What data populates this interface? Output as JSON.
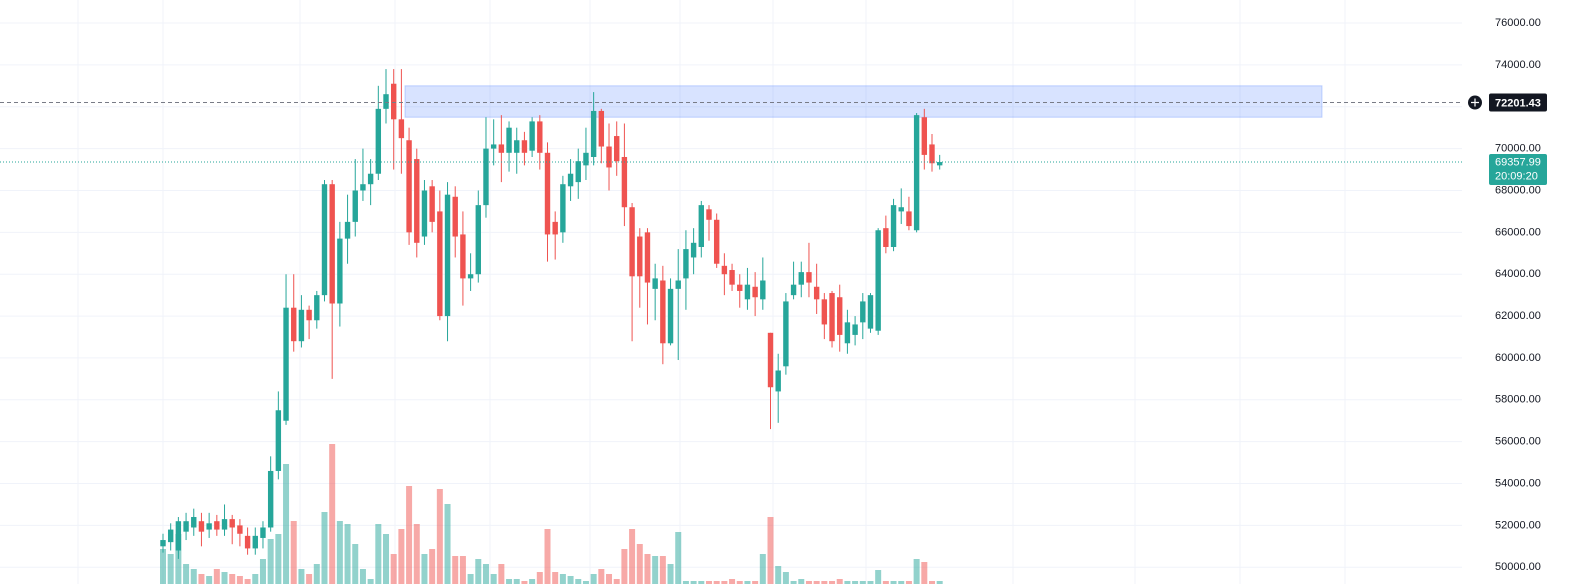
{
  "chart_data": {
    "type": "candlestick",
    "up_color": "#26a69a",
    "down_color": "#ef5350",
    "ylim": [
      49200,
      77100
    ],
    "yticks": [
      {
        "value": 50000,
        "label": "50000.00"
      },
      {
        "value": 52000,
        "label": "52000.00"
      },
      {
        "value": 54000,
        "label": "54000.00"
      },
      {
        "value": 56000,
        "label": "56000.00"
      },
      {
        "value": 58000,
        "label": "58000.00"
      },
      {
        "value": 60000,
        "label": "60000.00"
      },
      {
        "value": 62000,
        "label": "62000.00"
      },
      {
        "value": 64000,
        "label": "64000.00"
      },
      {
        "value": 66000,
        "label": "66000.00"
      },
      {
        "value": 68000,
        "label": "68000.00"
      },
      {
        "value": 70000,
        "label": "70000.00"
      },
      {
        "value": 72000,
        "label": "72000.00"
      },
      {
        "value": 74000,
        "label": "74000.00"
      },
      {
        "value": 76000,
        "label": "76000.00"
      }
    ],
    "grid": true,
    "zone": [
      71500,
      73000
    ],
    "alert_line": 72201.43,
    "last_price": 69357.99,
    "countdown": "20:09:20",
    "open": [
      51000,
      51200,
      50800,
      51700,
      51900,
      52200,
      51800,
      52200,
      51800,
      52300,
      52000,
      51500,
      50900,
      51400,
      51900,
      54600,
      57000,
      62400,
      60800,
      62300,
      61800,
      63000,
      68300,
      62600,
      65700,
      66500,
      68000,
      68300,
      68800,
      71900,
      73100,
      71400,
      70400,
      69500,
      65800,
      68200,
      67000,
      62000,
      67700,
      65900,
      63800,
      64000,
      67300,
      70000,
      70200,
      69800,
      69800,
      70400,
      69900,
      71300,
      69800,
      66500,
      66000,
      68200,
      68400,
      69200,
      69600,
      71800,
      70100,
      70600,
      69600,
      67200,
      65800,
      66000,
      63300,
      63700,
      60700,
      63300,
      63800,
      64800,
      65300,
      67100,
      66600,
      64400,
      64200,
      63500,
      62800,
      63400,
      62800,
      61200,
      58400,
      59600,
      63000,
      63500,
      64100,
      63400,
      62800,
      63100,
      62900,
      60700,
      61100,
      61700,
      61400,
      61300,
      66200,
      65300,
      67000,
      67000,
      66100,
      71500,
      70200,
      69200
    ],
    "high": [
      51600,
      52100,
      52400,
      52600,
      52800,
      52600,
      52600,
      52500,
      53000,
      52500,
      52300,
      51900,
      51900,
      52200,
      55300,
      58400,
      64000,
      64000,
      63000,
      62500,
      63200,
      68500,
      68500,
      66500,
      67800,
      69500,
      70000,
      69500,
      73000,
      73800,
      73800,
      73800,
      71000,
      70000,
      68500,
      68500,
      68000,
      68400,
      68200,
      67000,
      65000,
      68000,
      71500,
      71400,
      71600,
      71300,
      71000,
      70800,
      71500,
      71600,
      70300,
      67000,
      68700,
      69500,
      70000,
      71000,
      72700,
      71900,
      71200,
      71300,
      71200,
      67400,
      66200,
      66200,
      64500,
      64400,
      63800,
      65200,
      66100,
      66200,
      67500,
      67300,
      66900,
      65000,
      64500,
      64000,
      64300,
      64100,
      64800,
      61200,
      60200,
      63100,
      64600,
      64600,
      65500,
      64500,
      63100,
      63200,
      63500,
      62300,
      62000,
      63100,
      63100,
      66200,
      66800,
      67600,
      68100,
      67700,
      71700,
      71900,
      70700,
      69700
    ],
    "low": [
      50700,
      50800,
      50400,
      51300,
      51500,
      51000,
      51400,
      51500,
      51500,
      51100,
      51000,
      50600,
      50600,
      50900,
      51700,
      54200,
      56800,
      60300,
      60500,
      60900,
      61400,
      62700,
      59000,
      61500,
      64500,
      65800,
      67500,
      67300,
      68500,
      71200,
      69000,
      68800,
      65400,
      64800,
      65400,
      66000,
      61800,
      60800,
      64800,
      62500,
      63200,
      63600,
      66700,
      69200,
      68400,
      68900,
      68800,
      69200,
      69600,
      69000,
      64600,
      64700,
      65500,
      67500,
      67600,
      68500,
      69200,
      69300,
      68000,
      68700,
      66300,
      60800,
      62400,
      61600,
      61800,
      59700,
      60600,
      59900,
      62300,
      64000,
      64800,
      65600,
      64300,
      63000,
      63200,
      62400,
      62300,
      62000,
      62300,
      56600,
      56900,
      59200,
      62800,
      62900,
      62900,
      62100,
      60900,
      60500,
      60300,
      60200,
      60600,
      60900,
      61200,
      61100,
      65000,
      65100,
      66400,
      66100,
      66000,
      69000,
      68900,
      69000
    ],
    "close": [
      51300,
      51800,
      52200,
      52200,
      52400,
      51700,
      52100,
      51800,
      52300,
      51900,
      51600,
      50900,
      51500,
      51900,
      54600,
      57500,
      62400,
      60800,
      62300,
      61800,
      63000,
      68300,
      62600,
      65700,
      66500,
      68000,
      68300,
      68800,
      71900,
      72600,
      71400,
      70500,
      66000,
      65500,
      68000,
      66500,
      62000,
      67800,
      65800,
      63800,
      64000,
      67300,
      70000,
      70200,
      69800,
      71000,
      70400,
      69800,
      71300,
      69800,
      65900,
      65900,
      68300,
      68800,
      69400,
      69800,
      71800,
      70100,
      69100,
      69400,
      67200,
      63900,
      63900,
      63600,
      63800,
      60700,
      63300,
      63700,
      65200,
      65500,
      67300,
      66600,
      64500,
      64000,
      63500,
      63200,
      63500,
      62900,
      63700,
      58600,
      59400,
      62700,
      63500,
      64100,
      63600,
      62800,
      61600,
      60800,
      61100,
      61700,
      61600,
      62700,
      63000,
      66100,
      65300,
      67300,
      67200,
      66300,
      71600,
      69700,
      69300,
      69357.99
    ],
    "volume": [
      35,
      30,
      50,
      20,
      15,
      10,
      8,
      15,
      12,
      10,
      8,
      5,
      10,
      25,
      45,
      50,
      120,
      63,
      15,
      10,
      20,
      72,
      140,
      63,
      60,
      40,
      15,
      5,
      60,
      50,
      30,
      55,
      98,
      60,
      30,
      35,
      95,
      80,
      28,
      28,
      10,
      25,
      20,
      10,
      20,
      5,
      5,
      3,
      5,
      12,
      55,
      12,
      10,
      8,
      5,
      3,
      10,
      15,
      10,
      5,
      35,
      55,
      40,
      30,
      28,
      28,
      20,
      52,
      3,
      3,
      3,
      3,
      3,
      3,
      5,
      3,
      3,
      3,
      30,
      67,
      18,
      12,
      3,
      5,
      3,
      3,
      3,
      3,
      5,
      3,
      3,
      3,
      3,
      14,
      3,
      3,
      3,
      3,
      25,
      22,
      3,
      3
    ]
  }
}
